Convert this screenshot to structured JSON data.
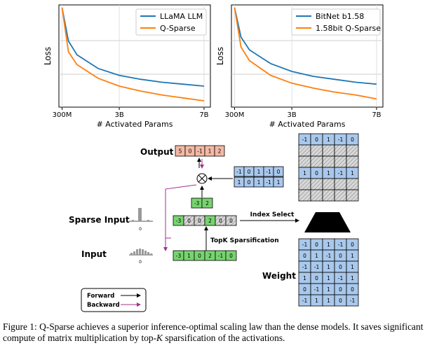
{
  "charts": [
    {
      "type": "line",
      "ylabel": "Loss",
      "xlabel": "# Activated Params",
      "x_ticks": [
        "300M",
        "3B",
        "7B"
      ],
      "x_tick_values": [
        0.3,
        3,
        7
      ],
      "xlim": [
        0.15,
        7.3
      ],
      "y_range_normalized": [
        0,
        1
      ],
      "series": [
        {
          "name": "LLaMA LLM",
          "color": "#1f77b4",
          "x": [
            0.3,
            0.6,
            1,
            2,
            3,
            4,
            5,
            6,
            7
          ],
          "y": [
            1.0,
            0.66,
            0.52,
            0.38,
            0.31,
            0.27,
            0.24,
            0.22,
            0.2
          ]
        },
        {
          "name": "Q-Sparse",
          "color": "#ff7f0e",
          "x": [
            0.3,
            0.6,
            1,
            2,
            3,
            4,
            5,
            6,
            7
          ],
          "y": [
            1.0,
            0.55,
            0.42,
            0.28,
            0.2,
            0.15,
            0.11,
            0.08,
            0.05
          ]
        }
      ]
    },
    {
      "type": "line",
      "ylabel": "Loss",
      "xlabel": "# Activated Params",
      "x_ticks": [
        "300M",
        "3B",
        "7B"
      ],
      "x_tick_values": [
        0.3,
        3,
        7
      ],
      "xlim": [
        0.15,
        7.3
      ],
      "y_range_normalized": [
        0,
        1
      ],
      "series": [
        {
          "name": "BitNet b1.58",
          "color": "#1f77b4",
          "x": [
            0.3,
            0.6,
            1,
            2,
            3,
            4,
            5,
            6,
            7
          ],
          "y": [
            1.0,
            0.7,
            0.57,
            0.43,
            0.35,
            0.3,
            0.27,
            0.24,
            0.22
          ]
        },
        {
          "name": "1.58bit Q-Sparse",
          "color": "#ff7f0e",
          "x": [
            0.3,
            0.6,
            1,
            2,
            3,
            4,
            5,
            6,
            7
          ],
          "y": [
            1.0,
            0.6,
            0.46,
            0.31,
            0.23,
            0.18,
            0.14,
            0.11,
            0.07
          ]
        }
      ]
    }
  ],
  "diagram": {
    "output_label": "Output",
    "output_values": [
      "5",
      "0",
      "-1",
      "1",
      "2"
    ],
    "selected_rows": [
      [
        "-1",
        "0",
        "1",
        "-1",
        "0"
      ],
      [
        "1",
        "0",
        "1",
        "-1",
        "1"
      ]
    ],
    "top_matrix_row1": [
      "-1",
      "0",
      "1",
      "-1",
      "0"
    ],
    "top_matrix_row2": [
      "1",
      "0",
      "1",
      "-1",
      "1"
    ],
    "sparse_values": [
      "-3",
      "2"
    ],
    "sparse_input_label": "Sparse Input",
    "sparse_vector": [
      "-3",
      "0",
      "0",
      "2",
      "0",
      "0"
    ],
    "index_select_label": "Index Select",
    "topk_label": "TopK Sparsification",
    "input_label": "Input",
    "input_vector": [
      "-3",
      "1",
      "0",
      "2",
      "-1",
      "0"
    ],
    "hist_zero_label": "0",
    "weight_label": "Weight",
    "weight_matrix": [
      [
        "-1",
        "0",
        "1",
        "-1",
        "0"
      ],
      [
        "0",
        "1",
        "-1",
        "0",
        "1"
      ],
      [
        "-1",
        "-1",
        "1",
        "0",
        "1"
      ],
      [
        "1",
        "0",
        "1",
        "-1",
        "1"
      ],
      [
        "0",
        "-1",
        "1",
        "0",
        "0"
      ],
      [
        "-1",
        "1",
        "1",
        "0",
        "-1"
      ]
    ],
    "legend_forward": "Forward",
    "legend_backward": "Backward",
    "colors": {
      "output": "#f4b8a5",
      "blue": "#a9c8ec",
      "green": "#77d46f",
      "hatch": "#c8c8c8",
      "backward": "#a0338c"
    }
  },
  "caption": {
    "prefix": "Figure 1: Q-Sparse achieves a superior inference-optimal scaling law than the dense models. It saves significant compute of matrix multiplication by top-",
    "k": "K",
    "suffix": " sparsification of the activations."
  }
}
